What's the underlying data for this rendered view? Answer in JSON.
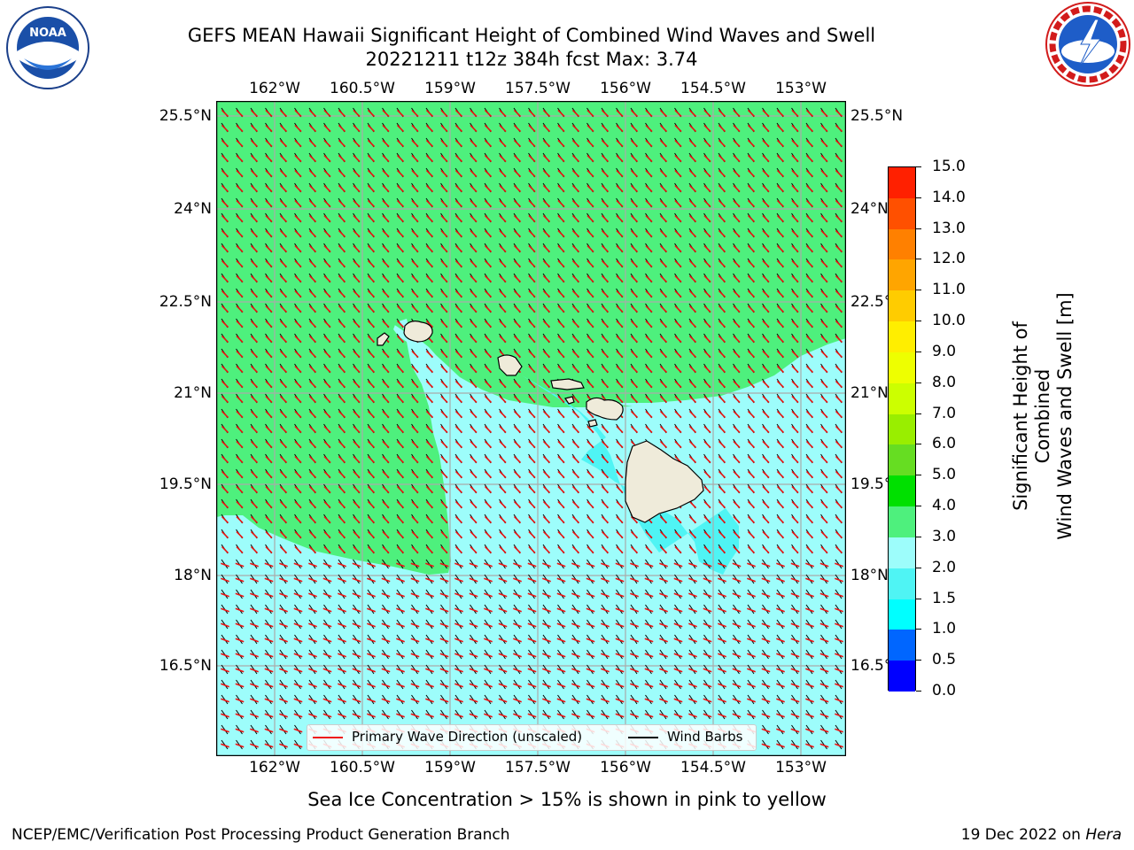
{
  "header": {
    "title_line1": "GEFS MEAN Hawaii Significant Height of Combined Wind Waves and Swell",
    "title_line2": "20221211 t12z 384h fcst   Max: 3.74"
  },
  "logos": {
    "noaa_text": "NOAA",
    "noaa_ring": "NATIONAL OCEANIC AND ATMOSPHERIC ADMINISTRATION · U.S. DEPARTMENT OF COMMERCE",
    "nws_ring": "NATIONAL WEATHER SERVICE"
  },
  "map": {
    "lon_labels": [
      "162°W",
      "160.5°W",
      "159°W",
      "157.5°W",
      "156°W",
      "154.5°W",
      "153°W"
    ],
    "lat_labels": [
      "25.5°N",
      "24°N",
      "22.5°N",
      "21°N",
      "19.5°N",
      "18°N",
      "16.5°N"
    ],
    "colors": {
      "band_3_4": "#4ef07d",
      "band_2_3": "#9dfdfb",
      "band_15_2": "#4ff4f4",
      "land": "#efebda",
      "wave_arrow": "#ee1111",
      "wind_barb": "#000000",
      "grid": "#aaaaaa"
    }
  },
  "colorbar": {
    "label_line1": "Significant Height of Combined",
    "label_line2": "Wind Waves and Swell [m]",
    "ticks": [
      "0.0",
      "0.5",
      "1.0",
      "1.5",
      "2.0",
      "3.0",
      "4.0",
      "5.0",
      "6.0",
      "7.0",
      "8.0",
      "9.0",
      "10.0",
      "11.0",
      "12.0",
      "13.0",
      "14.0",
      "15.0"
    ],
    "colors": [
      "#0000ff",
      "#0066ff",
      "#00ffff",
      "#4ff4f4",
      "#9dfdfb",
      "#4ef07d",
      "#00e000",
      "#66dd22",
      "#99ee00",
      "#ccff00",
      "#eeff00",
      "#ffee00",
      "#ffcc00",
      "#ffa500",
      "#ff8000",
      "#ff5000",
      "#ff2000"
    ]
  },
  "legend": {
    "wave_label": "Primary Wave Direction (unscaled)",
    "barb_label": "Wind Barbs"
  },
  "footer": {
    "caption": "Sea Ice Concentration > 15% is shown in pink to yellow",
    "credit": "NCEP/EMC/Verification Post Processing Product Generation Branch",
    "date_prefix": "19 Dec 2022 on ",
    "machine": "Hera"
  }
}
